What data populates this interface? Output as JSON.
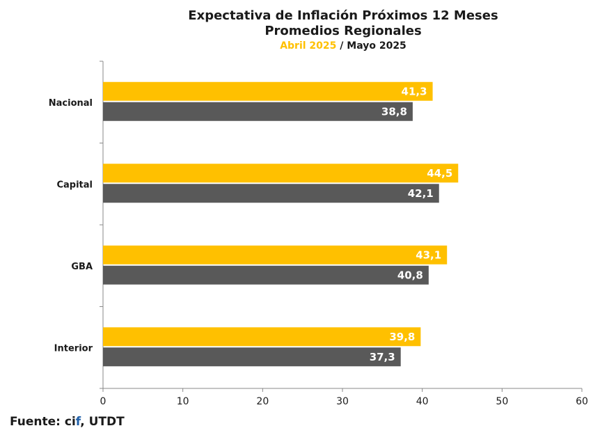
{
  "title_line1": "Expectativa de Inflación Próximos 12 Meses",
  "title_line2": "Promedios Regionales",
  "legend_label_1": "Abril 2025",
  "legend_sep": " / ",
  "legend_label_2": "Mayo 2025",
  "source_prefix": "Fuente: ci",
  "source_highlight": "f",
  "source_suffix": ", UTDT",
  "colors": {
    "series1": "#ffc000",
    "series2": "#595959"
  },
  "chart_data": {
    "type": "bar",
    "orientation": "horizontal",
    "categories": [
      "Nacional",
      "Capital",
      "GBA",
      "Interior"
    ],
    "series": [
      {
        "name": "Abril 2025",
        "values": [
          41.3,
          44.5,
          43.1,
          39.8
        ],
        "labels": [
          "41,3",
          "44,5",
          "43,1",
          "39,8"
        ]
      },
      {
        "name": "Mayo 2025",
        "values": [
          38.8,
          42.1,
          40.8,
          37.3
        ],
        "labels": [
          "38,8",
          "42,1",
          "40,8",
          "37,3"
        ]
      }
    ],
    "xlim": [
      0,
      60
    ],
    "xticks": [
      0,
      10,
      20,
      30,
      40,
      50,
      60
    ],
    "grid": false
  }
}
